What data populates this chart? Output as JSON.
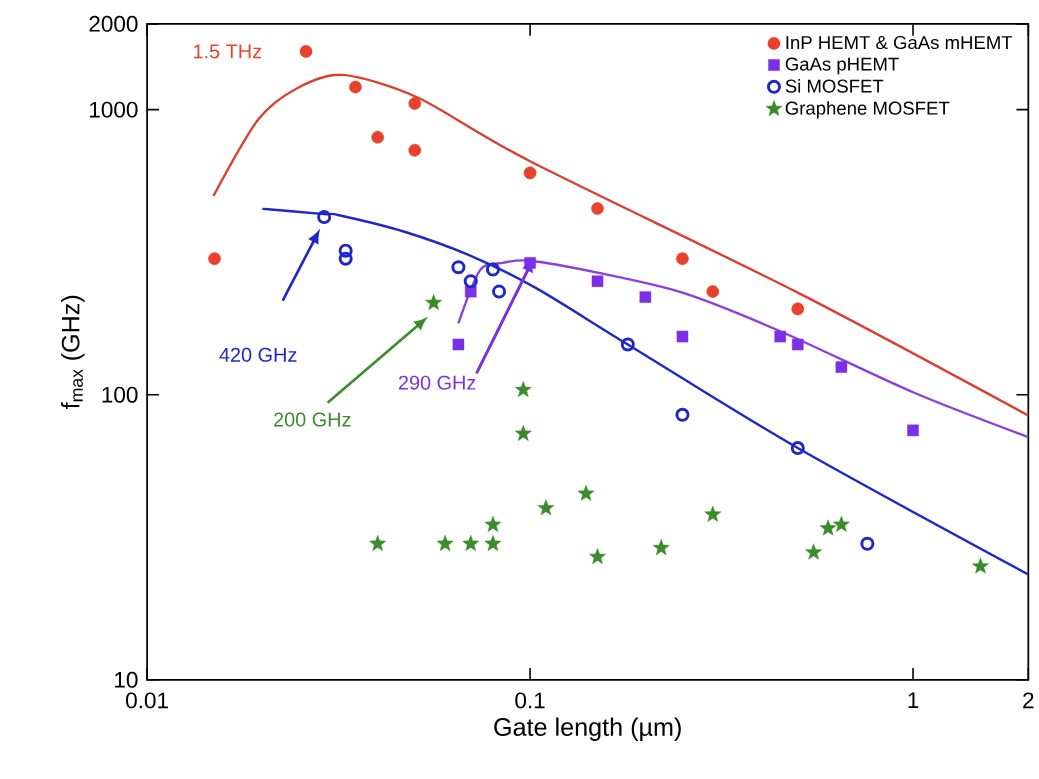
{
  "chart_data": {
    "type": "scatter",
    "xlabel": "Gate length (µm)",
    "ylabel": "f$_{max}$ (GHz)",
    "log": "xy",
    "xlim": [
      0.01,
      2
    ],
    "ylim": [
      10,
      2000
    ],
    "xticks": [
      0.01,
      0.1,
      1,
      2
    ],
    "yticks": [
      10,
      100,
      1000,
      2000
    ],
    "grid": false,
    "legend": "top right",
    "series": [
      {
        "name": "InP HEMT & GaAs mHEMT",
        "color": "#e8412c",
        "marker": "circle",
        "x": [
          0.015,
          0.026,
          0.035,
          0.04,
          0.05,
          0.05,
          0.1,
          0.15,
          0.25,
          0.3,
          0.5
        ],
        "values": [
          300,
          1600,
          1200,
          800,
          1050,
          720,
          600,
          450,
          300,
          230,
          200
        ]
      },
      {
        "name": "GaAs pHEMT",
        "color": "#7b2fe6",
        "marker": "square",
        "x": [
          0.065,
          0.07,
          0.1,
          0.15,
          0.2,
          0.25,
          0.45,
          0.5,
          0.65,
          1.0
        ],
        "values": [
          150,
          230,
          290,
          250,
          220,
          160,
          160,
          150,
          125,
          75
        ]
      },
      {
        "name": "Si MOSFET",
        "color": "#1f27c9",
        "marker": "open circle",
        "x": [
          0.029,
          0.033,
          0.033,
          0.065,
          0.07,
          0.08,
          0.083,
          0.18,
          0.25,
          0.5,
          0.76
        ],
        "values": [
          420,
          320,
          300,
          280,
          250,
          275,
          230,
          150,
          85,
          65,
          30
        ]
      },
      {
        "name": "Graphene MOSFET",
        "color": "#3c8c2c",
        "marker": "star",
        "x": [
          0.04,
          0.06,
          0.07,
          0.08,
          0.08,
          0.056,
          0.096,
          0.096,
          0.11,
          0.14,
          0.15,
          0.22,
          0.3,
          0.55,
          0.6,
          0.65,
          1.5
        ],
        "values": [
          30,
          30,
          30,
          30,
          35,
          210,
          104,
          73,
          40,
          45,
          27,
          29,
          38,
          28,
          34,
          35,
          25
        ]
      },
      {
        "type": "line",
        "color": "#d9412e",
        "x": [
          0.0149,
          0.0195,
          0.0248,
          0.0325,
          0.051,
          0.1,
          0.5,
          2
        ],
        "values": [
          498,
          923,
          1194,
          1324,
          1101,
          659,
          228,
          84.5
        ]
      },
      {
        "type": "line",
        "color": "#8b3fe0",
        "x": [
          0.065,
          0.074,
          0.085,
          0.1,
          0.15,
          0.25,
          0.45,
          1,
          2
        ],
        "values": [
          178,
          273,
          290,
          295,
          268,
          228,
          167,
          102,
          71
        ]
      },
      {
        "type": "line",
        "color": "#1e28c8",
        "x": [
          0.02,
          0.029,
          0.0315,
          0.047,
          0.07,
          0.104,
          0.18,
          0.5,
          2
        ],
        "values": [
          449,
          430,
          427,
          373,
          307,
          236,
          150,
          65,
          23.4
        ]
      }
    ],
    "annotations": [
      {
        "text": "1.5 THz",
        "x": 0.026,
        "y": 1600
      },
      "420 GHz",
      "200 GHz",
      {
        "text": "290 GHz",
        "x": 0.1,
        "y": 290
      }
    ]
  }
}
